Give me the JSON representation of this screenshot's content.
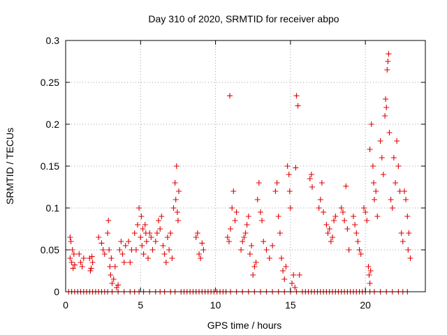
{
  "chart_data": {
    "type": "scatter",
    "title": "Day 310 of 2020, SRMTID for receiver abpo",
    "xlabel": "GPS time / hours",
    "ylabel": "SRMTID / TECUs",
    "xlim": [
      0,
      24
    ],
    "ylim": [
      0,
      0.3
    ],
    "x_ticks": [
      0,
      5,
      10,
      15,
      20
    ],
    "x_tick_labels": [
      "0",
      "5",
      "10",
      "15",
      "20"
    ],
    "y_ticks": [
      0,
      0.05,
      0.1,
      0.15,
      0.2,
      0.25,
      0.3
    ],
    "y_tick_labels": [
      "0",
      "0.05",
      "0.1",
      "0.15",
      "0.2",
      "0.25",
      "0.3"
    ],
    "grid": true,
    "marker": "+",
    "color": "#e00000",
    "series": [
      {
        "name": "SRMTID",
        "points": [
          [
            0.3,
            0.04
          ],
          [
            0.35,
            0.06
          ],
          [
            0.4,
            0.035
          ],
          [
            0.45,
            0.05
          ],
          [
            0.5,
            0.028
          ],
          [
            0.55,
            0.045
          ],
          [
            0.6,
            0.032
          ],
          [
            0.3,
            0.065
          ],
          [
            0.9,
            0.045
          ],
          [
            1.0,
            0.035
          ],
          [
            1.1,
            0.03
          ],
          [
            1.2,
            0.04
          ],
          [
            1.6,
            0.04
          ],
          [
            1.7,
            0.028
          ],
          [
            1.8,
            0.035
          ],
          [
            1.75,
            0.042
          ],
          [
            1.65,
            0.025
          ],
          [
            2.2,
            0.065
          ],
          [
            2.4,
            0.058
          ],
          [
            2.5,
            0.05
          ],
          [
            2.6,
            0.045
          ],
          [
            2.8,
            0.07
          ],
          [
            2.85,
            0.085
          ],
          [
            2.9,
            0.05
          ],
          [
            2.95,
            0.03
          ],
          [
            3.0,
            0.02
          ],
          [
            3.05,
            0.04
          ],
          [
            3.1,
            0.01
          ],
          [
            3.2,
            0.015
          ],
          [
            3.3,
            0.03
          ],
          [
            3.4,
            0.005
          ],
          [
            3.5,
            0.008
          ],
          [
            3.6,
            0.05
          ],
          [
            3.7,
            0.06
          ],
          [
            3.8,
            0.045
          ],
          [
            3.9,
            0.035
          ],
          [
            4.0,
            0.055
          ],
          [
            4.2,
            0.06
          ],
          [
            4.3,
            0.035
          ],
          [
            4.4,
            0.05
          ],
          [
            4.6,
            0.07
          ],
          [
            4.7,
            0.05
          ],
          [
            4.8,
            0.08
          ],
          [
            4.9,
            0.1
          ],
          [
            5.0,
            0.065
          ],
          [
            5.05,
            0.09
          ],
          [
            5.1,
            0.055
          ],
          [
            5.15,
            0.075
          ],
          [
            5.2,
            0.045
          ],
          [
            5.3,
            0.08
          ],
          [
            5.35,
            0.07
          ],
          [
            5.4,
            0.06
          ],
          [
            5.5,
            0.04
          ],
          [
            5.6,
            0.07
          ],
          [
            5.7,
            0.065
          ],
          [
            5.8,
            0.05
          ],
          [
            6.0,
            0.06
          ],
          [
            6.1,
            0.07
          ],
          [
            6.2,
            0.085
          ],
          [
            6.3,
            0.075
          ],
          [
            6.4,
            0.09
          ],
          [
            6.5,
            0.055
          ],
          [
            6.6,
            0.045
          ],
          [
            6.7,
            0.035
          ],
          [
            6.8,
            0.065
          ],
          [
            6.9,
            0.05
          ],
          [
            7.0,
            0.07
          ],
          [
            7.1,
            0.04
          ],
          [
            7.3,
            0.13
          ],
          [
            7.35,
            0.11
          ],
          [
            7.4,
            0.15
          ],
          [
            7.45,
            0.095
          ],
          [
            7.5,
            0.085
          ],
          [
            7.55,
            0.12
          ],
          [
            7.2,
            0.1
          ],
          [
            8.7,
            0.065
          ],
          [
            8.8,
            0.07
          ],
          [
            8.9,
            0.045
          ],
          [
            9.0,
            0.04
          ],
          [
            9.1,
            0.058
          ],
          [
            9.2,
            0.05
          ],
          [
            10.8,
            0.065
          ],
          [
            10.9,
            0.06
          ],
          [
            10.95,
            0.234
          ],
          [
            11.0,
            0.075
          ],
          [
            11.1,
            0.1
          ],
          [
            11.2,
            0.12
          ],
          [
            11.3,
            0.085
          ],
          [
            11.4,
            0.095
          ],
          [
            11.7,
            0.05
          ],
          [
            11.8,
            0.06
          ],
          [
            11.9,
            0.065
          ],
          [
            12.0,
            0.07
          ],
          [
            12.1,
            0.08
          ],
          [
            12.2,
            0.09
          ],
          [
            12.3,
            0.045
          ],
          [
            12.4,
            0.055
          ],
          [
            12.5,
            0.02
          ],
          [
            12.6,
            0.03
          ],
          [
            12.7,
            0.035
          ],
          [
            12.8,
            0.11
          ],
          [
            12.9,
            0.13
          ],
          [
            13.0,
            0.095
          ],
          [
            13.1,
            0.085
          ],
          [
            13.2,
            0.06
          ],
          [
            13.4,
            0.05
          ],
          [
            13.6,
            0.04
          ],
          [
            13.8,
            0.055
          ],
          [
            14.0,
            0.12
          ],
          [
            14.1,
            0.13
          ],
          [
            14.2,
            0.09
          ],
          [
            14.3,
            0.07
          ],
          [
            14.4,
            0.04
          ],
          [
            14.5,
            0.025
          ],
          [
            14.6,
            0.015
          ],
          [
            14.7,
            0.03
          ],
          [
            14.8,
            0.15
          ],
          [
            14.9,
            0.14
          ],
          [
            14.95,
            0.12
          ],
          [
            15.0,
            0.1
          ],
          [
            15.1,
            0.01
          ],
          [
            15.2,
            0.02
          ],
          [
            15.3,
            0.005
          ],
          [
            15.35,
            0.148
          ],
          [
            15.4,
            0.234
          ],
          [
            15.5,
            0.222
          ],
          [
            15.6,
            0.02
          ],
          [
            16.3,
            0.135
          ],
          [
            16.4,
            0.14
          ],
          [
            16.45,
            0.125
          ],
          [
            16.9,
            0.1
          ],
          [
            17.0,
            0.11
          ],
          [
            17.1,
            0.13
          ],
          [
            17.2,
            0.095
          ],
          [
            17.4,
            0.08
          ],
          [
            17.5,
            0.07
          ],
          [
            17.6,
            0.075
          ],
          [
            17.7,
            0.06
          ],
          [
            17.8,
            0.065
          ],
          [
            17.9,
            0.085
          ],
          [
            18.0,
            0.09
          ],
          [
            18.4,
            0.1
          ],
          [
            18.5,
            0.095
          ],
          [
            18.6,
            0.085
          ],
          [
            18.7,
            0.126
          ],
          [
            18.8,
            0.075
          ],
          [
            18.9,
            0.05
          ],
          [
            19.2,
            0.09
          ],
          [
            19.3,
            0.08
          ],
          [
            19.4,
            0.07
          ],
          [
            19.5,
            0.06
          ],
          [
            19.6,
            0.05
          ],
          [
            19.7,
            0.045
          ],
          [
            19.9,
            0.1
          ],
          [
            20.0,
            0.095
          ],
          [
            20.1,
            0.085
          ],
          [
            20.2,
            0.03
          ],
          [
            20.25,
            0.02
          ],
          [
            20.3,
            0.01
          ],
          [
            20.35,
            0.025
          ],
          [
            20.3,
            0.17
          ],
          [
            20.4,
            0.2
          ],
          [
            20.5,
            0.15
          ],
          [
            20.55,
            0.13
          ],
          [
            20.6,
            0.11
          ],
          [
            20.7,
            0.12
          ],
          [
            20.8,
            0.09
          ],
          [
            21.0,
            0.18
          ],
          [
            21.1,
            0.16
          ],
          [
            21.2,
            0.14
          ],
          [
            21.3,
            0.21
          ],
          [
            21.35,
            0.23
          ],
          [
            21.4,
            0.22
          ],
          [
            21.45,
            0.265
          ],
          [
            21.5,
            0.275
          ],
          [
            21.55,
            0.284
          ],
          [
            21.6,
            0.19
          ],
          [
            21.7,
            0.11
          ],
          [
            21.8,
            0.1
          ],
          [
            21.9,
            0.16
          ],
          [
            22.0,
            0.13
          ],
          [
            22.1,
            0.18
          ],
          [
            22.2,
            0.15
          ],
          [
            22.3,
            0.12
          ],
          [
            22.4,
            0.07
          ],
          [
            22.5,
            0.06
          ],
          [
            22.6,
            0.12
          ],
          [
            22.7,
            0.11
          ],
          [
            22.8,
            0.09
          ],
          [
            22.9,
            0.07
          ],
          [
            23.0,
            0.04
          ],
          [
            22.85,
            0.05
          ]
        ],
        "zero_points": [
          0.2,
          0.4,
          0.6,
          0.8,
          1.0,
          1.2,
          1.4,
          1.6,
          1.8,
          2.0,
          2.2,
          2.4,
          2.6,
          2.8,
          3.1,
          3.5,
          3.9,
          4.3,
          4.6,
          4.9,
          5.2,
          5.6,
          6.0,
          6.3,
          6.6,
          7.0,
          7.3,
          7.7,
          7.9,
          8.1,
          8.3,
          8.5,
          8.7,
          8.9,
          9.1,
          9.3,
          9.5,
          9.7,
          9.9,
          10.1,
          10.3,
          10.5,
          10.7,
          11.0,
          11.4,
          11.8,
          12.2,
          12.6,
          13.0,
          13.4,
          13.8,
          14.2,
          14.6,
          15.0,
          15.4,
          15.8,
          16.0,
          16.2,
          16.4,
          16.6,
          16.8,
          17.0,
          17.2,
          17.4,
          17.6,
          17.8,
          18.0,
          18.2,
          18.4,
          18.6,
          18.8,
          19.0,
          19.2,
          19.4,
          19.6,
          19.8,
          20.0,
          20.3,
          20.6,
          21.0,
          21.4,
          21.8,
          22.2,
          22.5,
          22.8
        ]
      }
    ]
  }
}
